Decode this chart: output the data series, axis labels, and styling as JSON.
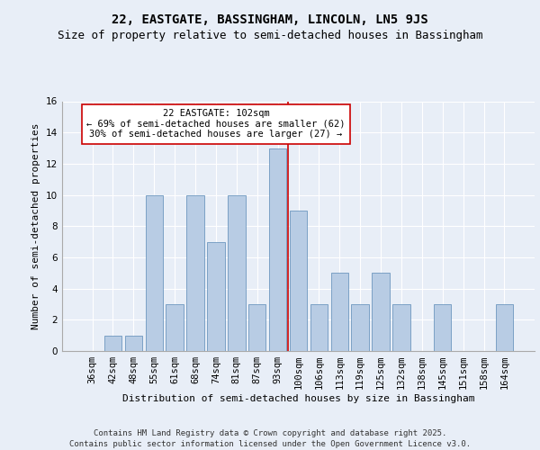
{
  "title": "22, EASTGATE, BASSINGHAM, LINCOLN, LN5 9JS",
  "subtitle": "Size of property relative to semi-detached houses in Bassingham",
  "xlabel": "Distribution of semi-detached houses by size in Bassingham",
  "ylabel": "Number of semi-detached properties",
  "categories": [
    "36sqm",
    "42sqm",
    "48sqm",
    "55sqm",
    "61sqm",
    "68sqm",
    "74sqm",
    "81sqm",
    "87sqm",
    "93sqm",
    "100sqm",
    "106sqm",
    "113sqm",
    "119sqm",
    "125sqm",
    "132sqm",
    "138sqm",
    "145sqm",
    "151sqm",
    "158sqm",
    "164sqm"
  ],
  "values": [
    0,
    1,
    1,
    10,
    3,
    10,
    7,
    10,
    3,
    13,
    9,
    3,
    5,
    3,
    5,
    3,
    0,
    3,
    0,
    0,
    3
  ],
  "bar_color": "#b8cce4",
  "bar_edge_color": "#5a8ab5",
  "vline_x": 9.5,
  "vline_color": "#cc0000",
  "annotation_text": "22 EASTGATE: 102sqm\n← 69% of semi-detached houses are smaller (62)\n30% of semi-detached houses are larger (27) →",
  "annotation_box_color": "#ffffff",
  "annotation_box_edge": "#cc0000",
  "ylim": [
    0,
    16
  ],
  "yticks": [
    0,
    2,
    4,
    6,
    8,
    10,
    12,
    14,
    16
  ],
  "background_color": "#e8eef7",
  "grid_color": "#ffffff",
  "title_fontsize": 10,
  "subtitle_fontsize": 9,
  "axis_label_fontsize": 8,
  "tick_fontsize": 7.5,
  "annotation_fontsize": 7.5,
  "footer_text": "Contains HM Land Registry data © Crown copyright and database right 2025.\nContains public sector information licensed under the Open Government Licence v3.0.",
  "footer_fontsize": 6.5
}
